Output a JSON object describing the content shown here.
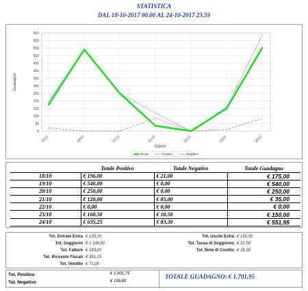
{
  "header": {
    "title": "STATISTICA",
    "subtitle": "DAL 18-10-2017 00.00 AL 24-10-2017 23.59"
  },
  "chart_data": {
    "type": "line",
    "ylabel": "Guadagno",
    "xlabel": "Giorni",
    "categories": [
      "18/10",
      "19/10",
      "20/10",
      "21/10",
      "22/10",
      "23/10",
      "24/10"
    ],
    "yticks": [
      "0",
      "50",
      "100",
      "150",
      "200",
      "250",
      "300",
      "350",
      "400",
      "450",
      "500",
      "550",
      "600",
      "650"
    ],
    "ylim": [
      0,
      650
    ],
    "grid": true,
    "legend_position": "bottom",
    "series": [
      {
        "name": "Ricavi",
        "values": [
          175,
          540,
          250,
          35,
          0,
          150,
          551.95
        ],
        "color": "#22dd22",
        "style": "thick"
      },
      {
        "name": "Positivo",
        "values": [
          196,
          540,
          250,
          120,
          0,
          160.5,
          635.25
        ],
        "color": "#4a4ae6",
        "style": "dotted"
      },
      {
        "name": "Negativo",
        "values": [
          21,
          0,
          0,
          85,
          0,
          10.5,
          83.3
        ],
        "color": "#e05555",
        "style": "dashed"
      }
    ]
  },
  "table": {
    "headers": [
      "",
      "Totale Positivo",
      "Totale Negativo",
      "Totale Guadagno"
    ],
    "rows": [
      {
        "date": "18/10",
        "pos": "€ 196,00",
        "neg": "€ 21,00",
        "gua": "€ 175,00"
      },
      {
        "date": "19/10",
        "pos": "€ 540,00",
        "neg": "€ 0,00",
        "gua": "€ 540,00"
      },
      {
        "date": "20/10",
        "pos": "€ 250,00",
        "neg": "€ 0,00",
        "gua": "€ 250,00"
      },
      {
        "date": "21/10",
        "pos": "€ 120,00",
        "neg": "€ 85,00",
        "gua": "€ 35,00"
      },
      {
        "date": "22/10",
        "pos": "€ 0,00",
        "neg": "€ 0,00",
        "gua": "€ 0,00"
      },
      {
        "date": "23/10",
        "pos": "€ 160,50",
        "neg": "€ 10,50",
        "gua": "€ 150,00"
      },
      {
        "date": "24/10",
        "pos": "€ 635,25",
        "neg": "€ 83,30",
        "gua": "€ 551,95"
      }
    ]
  },
  "totals": {
    "left": [
      {
        "label": "Tot. Entrate Extra",
        "value": "€ 120,00"
      },
      {
        "label": "Tot. Soggiorni",
        "value": "€ 1.146,50"
      },
      {
        "label": "Tot. Fatture",
        "value": "€ 183,00"
      },
      {
        "label": "Tot. Ricevute Fiscali",
        "value": "€ 381,25"
      },
      {
        "label": "Tot. Vendite",
        "value": "€ 71,00"
      }
    ],
    "right": [
      {
        "label": "Tot. Uscite Extra",
        "value": "€ 150,00"
      },
      {
        "label": "Tot. Tassa di Soggiorno",
        "value": "€ 31,50"
      },
      {
        "label": "Tot. Note di Credito",
        "value": "€ 18,30"
      }
    ]
  },
  "footer": {
    "positivo_label": "Tot. Positivo",
    "positivo_value": "€ 1.901,75",
    "negativo_label": "Tot. Negativo",
    "negativo_value": "€ 199,80",
    "grand_total": "TOTALE GUADAGNO: € 1.701,95"
  }
}
